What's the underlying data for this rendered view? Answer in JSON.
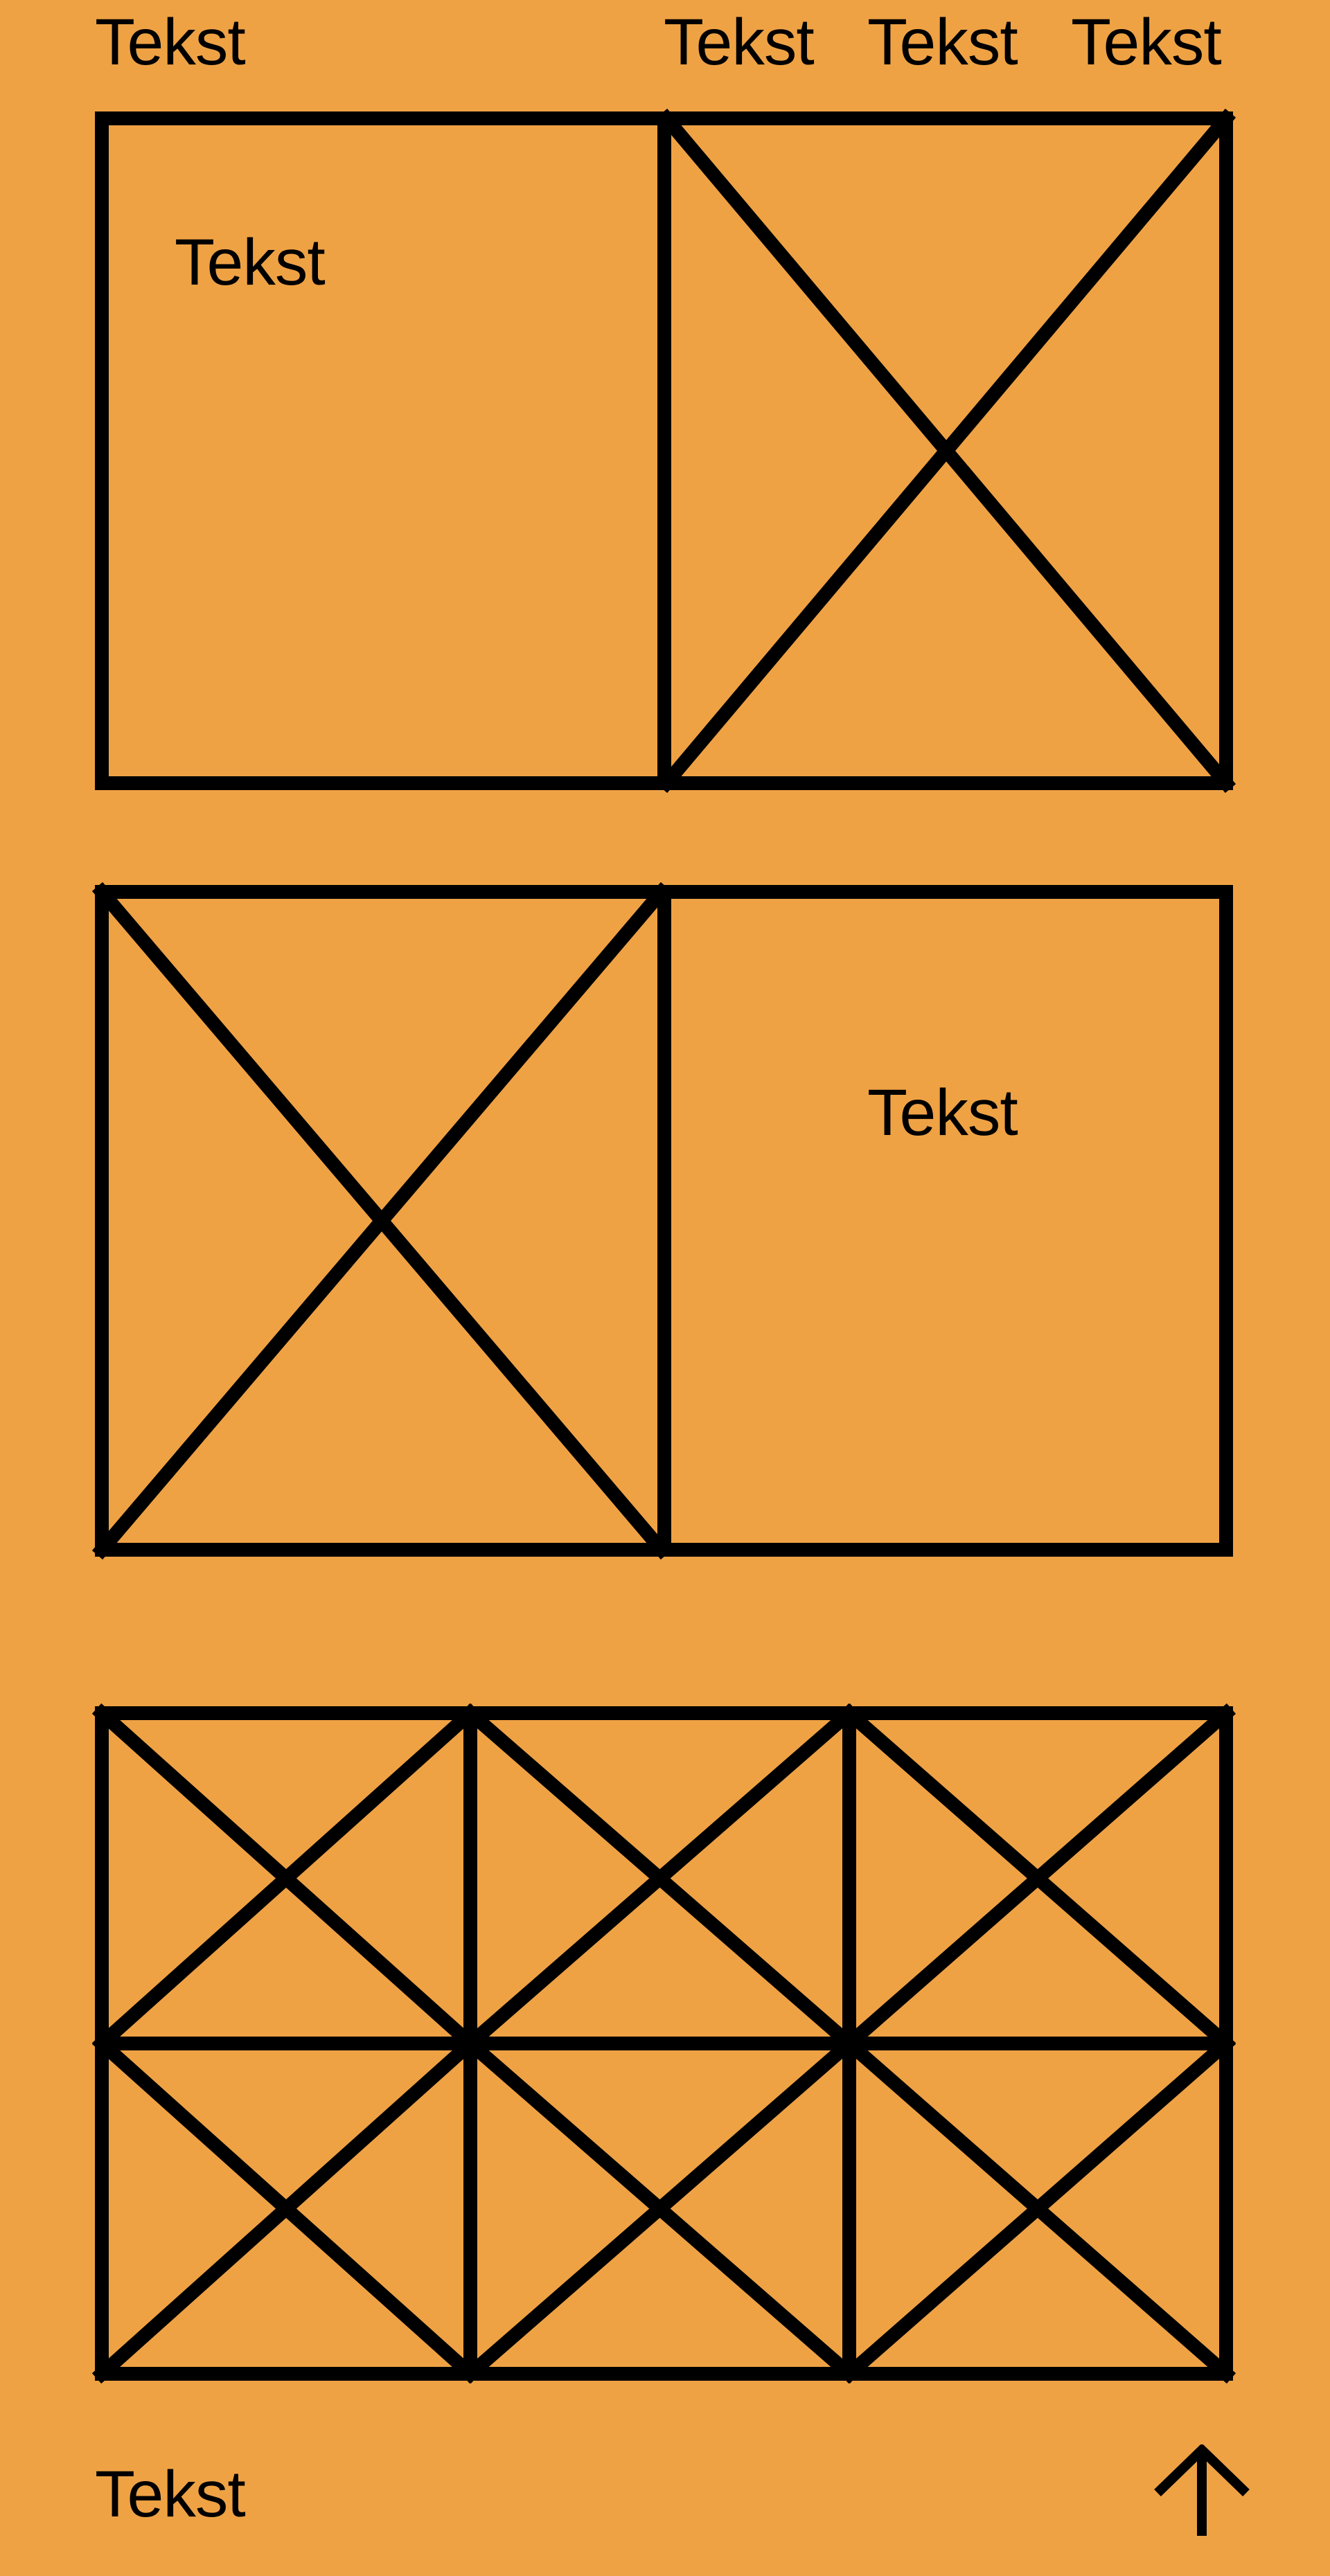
{
  "header": {
    "logo_text": "Tekst",
    "nav": [
      "Tekst",
      "Tekst",
      "Tekst"
    ]
  },
  "sections": {
    "top_block_text": "Tekst",
    "middle_block_text": "Tekst"
  },
  "footer": {
    "text": "Tekst",
    "back_to_top_icon": "arrow-up-icon"
  },
  "colors": {
    "background": "#EFA244",
    "foreground": "#000000"
  }
}
